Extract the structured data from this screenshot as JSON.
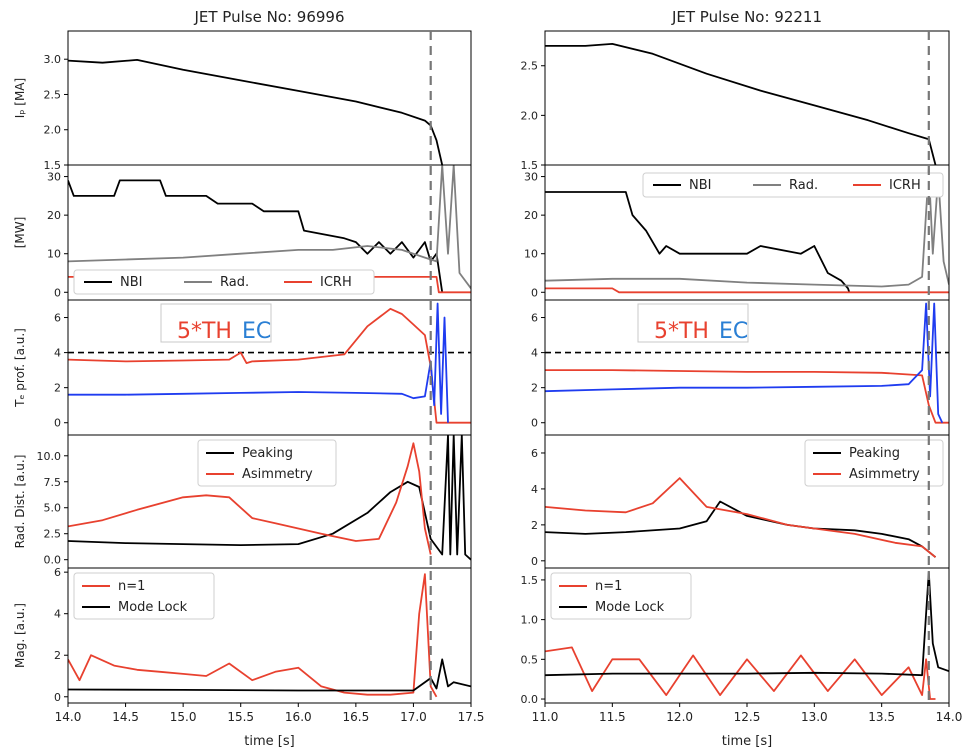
{
  "figure": {
    "xlabel": "time [s]"
  },
  "colors": {
    "black": "#000000",
    "gray": "#808080",
    "red": "#e8412f",
    "blue": "#1f3cf0",
    "thblue": "#2a7fd4"
  },
  "chart_data": [
    {
      "title": "JET Pulse No: 96996",
      "type": "line",
      "xlim": [
        14.0,
        17.5
      ],
      "xticks": [
        "14.0",
        "14.5",
        "15.0",
        "15.5",
        "16.0",
        "16.5",
        "17.0",
        "17.5"
      ],
      "vline_time": 17.15,
      "panels": [
        {
          "id": "ip",
          "ylabel": "Iₚ [MA]",
          "ylim": [
            1.5,
            3.4
          ],
          "yticks": [
            "1.5",
            "2.0",
            "2.5",
            "3.0"
          ],
          "series": [
            {
              "name": "",
              "color": "#000000",
              "x": [
                14.0,
                14.3,
                14.6,
                15.0,
                15.5,
                16.0,
                16.5,
                16.9,
                17.1,
                17.15,
                17.2,
                17.25
              ],
              "y": [
                2.98,
                2.95,
                2.99,
                2.85,
                2.7,
                2.55,
                2.4,
                2.24,
                2.13,
                2.06,
                1.85,
                1.5
              ]
            }
          ]
        },
        {
          "id": "power",
          "ylabel": "[MW]",
          "ylim": [
            -2,
            33
          ],
          "yticks": [
            "0",
            "10",
            "20",
            "30"
          ],
          "legend": {
            "position": "bottom-left"
          },
          "series": [
            {
              "name": "NBI",
              "color": "#000000",
              "x": [
                14.0,
                14.05,
                14.1,
                14.4,
                14.45,
                14.8,
                14.85,
                15.2,
                15.3,
                15.6,
                15.7,
                16.0,
                16.05,
                16.4,
                16.5,
                16.6,
                16.7,
                16.8,
                16.9,
                17.0,
                17.1,
                17.15,
                17.2,
                17.25
              ],
              "y": [
                29,
                25,
                25,
                25,
                29,
                29,
                25,
                25,
                23,
                23,
                21,
                21,
                16,
                14,
                13,
                10,
                13,
                10,
                13,
                9,
                13,
                8,
                10,
                0
              ]
            },
            {
              "name": "Rad.",
              "color": "#808080",
              "x": [
                14.0,
                14.5,
                15.0,
                15.5,
                16.0,
                16.3,
                16.6,
                16.9,
                17.1,
                17.2,
                17.25,
                17.3,
                17.35,
                17.4,
                17.5
              ],
              "y": [
                8,
                8.5,
                9,
                10,
                11,
                11,
                12,
                11,
                9,
                8,
                33,
                10,
                33,
                5,
                1
              ]
            },
            {
              "name": "ICRH",
              "color": "#e8412f",
              "x": [
                14.0,
                17.2,
                17.22,
                17.5
              ],
              "y": [
                4,
                4,
                0,
                0
              ]
            }
          ]
        },
        {
          "id": "te",
          "ylabel": "Tₑ prof. [a.u.]",
          "ylim": [
            -0.7,
            7
          ],
          "yticks": [
            "0",
            "2",
            "4",
            "6"
          ],
          "hline": 4,
          "annotation": {
            "red_text": "5*TH",
            "blue_text": "EC"
          },
          "series": [
            {
              "name": "5*TH",
              "color": "#e8412f",
              "x": [
                14.0,
                14.5,
                15.0,
                15.4,
                15.5,
                15.55,
                15.6,
                16.0,
                16.4,
                16.6,
                16.8,
                16.9,
                17.0,
                17.1,
                17.15,
                17.2,
                17.25,
                17.5
              ],
              "y": [
                3.6,
                3.5,
                3.55,
                3.6,
                4.0,
                3.4,
                3.5,
                3.6,
                3.9,
                5.5,
                6.5,
                6.2,
                5.6,
                5.0,
                3.2,
                0,
                0,
                0
              ]
            },
            {
              "name": "EC",
              "color": "#1f3cf0",
              "x": [
                14.0,
                14.5,
                15.0,
                15.5,
                16.0,
                16.5,
                16.9,
                17.0,
                17.1,
                17.15,
                17.18,
                17.21,
                17.24,
                17.27,
                17.3
              ],
              "y": [
                1.6,
                1.6,
                1.65,
                1.7,
                1.75,
                1.7,
                1.65,
                1.4,
                1.5,
                3.5,
                1.0,
                6.8,
                0.5,
                6.0,
                0
              ]
            }
          ]
        },
        {
          "id": "rad",
          "ylabel": "Rad. Dist. [a.u.]",
          "ylim": [
            -0.8,
            12
          ],
          "yticks": [
            "0.0",
            "2.5",
            "5.0",
            "7.5",
            "10.0"
          ],
          "legend": {
            "position": "top-center"
          },
          "series": [
            {
              "name": "Peaking",
              "color": "#000000",
              "x": [
                14.0,
                14.5,
                15.0,
                15.5,
                16.0,
                16.3,
                16.6,
                16.8,
                16.95,
                17.05,
                17.15,
                17.25,
                17.3,
                17.32,
                17.35,
                17.38,
                17.42,
                17.45,
                17.5
              ],
              "y": [
                1.8,
                1.6,
                1.5,
                1.4,
                1.5,
                2.5,
                4.5,
                6.5,
                7.5,
                7.0,
                2.0,
                0.5,
                12,
                0.5,
                12,
                0.5,
                12,
                0.5,
                0
              ]
            },
            {
              "name": "Asimmetry",
              "color": "#e8412f",
              "x": [
                14.0,
                14.3,
                14.6,
                15.0,
                15.2,
                15.4,
                15.6,
                15.8,
                16.0,
                16.2,
                16.5,
                16.7,
                16.85,
                16.95,
                17.0,
                17.05,
                17.1,
                17.15
              ],
              "y": [
                3.2,
                3.8,
                4.8,
                6.0,
                6.2,
                6.0,
                4.0,
                3.5,
                3.0,
                2.5,
                1.8,
                2.0,
                5.5,
                9.0,
                11.2,
                8.5,
                3.0,
                0.5
              ]
            }
          ]
        },
        {
          "id": "mag",
          "ylabel": "Mag. [a.u.]",
          "ylim": [
            -0.3,
            6.2
          ],
          "yticks": [
            "0",
            "2",
            "4",
            "6"
          ],
          "legend": {
            "position": "top-left"
          },
          "series": [
            {
              "name": "n=1",
              "color": "#e8412f",
              "x": [
                14.0,
                14.1,
                14.2,
                14.4,
                14.6,
                14.8,
                15.0,
                15.2,
                15.4,
                15.6,
                15.8,
                16.0,
                16.2,
                16.4,
                16.6,
                16.8,
                17.0,
                17.05,
                17.1,
                17.15,
                17.2
              ],
              "y": [
                1.8,
                0.8,
                2.0,
                1.5,
                1.3,
                1.2,
                1.1,
                1.0,
                1.6,
                0.8,
                1.2,
                1.4,
                0.5,
                0.2,
                0.1,
                0.1,
                0.2,
                4.0,
                5.9,
                0.5,
                0
              ]
            },
            {
              "name": "Mode Lock",
              "color": "#000000",
              "x": [
                14.0,
                15.0,
                16.0,
                17.0,
                17.15,
                17.2,
                17.25,
                17.3,
                17.35,
                17.5
              ],
              "y": [
                0.35,
                0.33,
                0.3,
                0.3,
                0.9,
                0.4,
                1.8,
                0.5,
                0.7,
                0.5
              ]
            }
          ]
        }
      ]
    },
    {
      "title": "JET Pulse No: 92211",
      "type": "line",
      "xlim": [
        11.0,
        14.0
      ],
      "xticks": [
        "11.0",
        "11.5",
        "12.0",
        "12.5",
        "13.0",
        "13.5",
        "14.0"
      ],
      "vline_time": 13.85,
      "panels": [
        {
          "id": "ip",
          "ylabel": "",
          "ylim": [
            1.5,
            2.85
          ],
          "yticks": [
            "1.5",
            "2.0",
            "2.5"
          ],
          "series": [
            {
              "name": "",
              "color": "#000000",
              "x": [
                11.0,
                11.3,
                11.5,
                11.8,
                12.2,
                12.6,
                13.0,
                13.4,
                13.7,
                13.85,
                13.9
              ],
              "y": [
                2.7,
                2.7,
                2.72,
                2.62,
                2.42,
                2.25,
                2.1,
                1.95,
                1.82,
                1.76,
                1.5
              ]
            }
          ]
        },
        {
          "id": "power",
          "ylabel": "",
          "ylim": [
            -2,
            33
          ],
          "yticks": [
            "0",
            "10",
            "20",
            "30"
          ],
          "legend": {
            "position": "top-right"
          },
          "series": [
            {
              "name": "NBI",
              "color": "#000000",
              "x": [
                11.0,
                11.6,
                11.65,
                11.75,
                11.8,
                11.85,
                11.9,
                12.0,
                12.5,
                12.6,
                12.9,
                13.0,
                13.1,
                13.2,
                13.25,
                13.26
              ],
              "y": [
                26,
                26,
                20,
                16,
                13,
                10,
                12,
                10,
                10,
                12,
                10,
                12,
                5,
                3,
                1,
                0
              ]
            },
            {
              "name": "Rad.",
              "color": "#808080",
              "x": [
                11.0,
                11.5,
                12.0,
                12.5,
                13.0,
                13.5,
                13.7,
                13.8,
                13.85,
                13.88,
                13.92,
                13.96,
                14.0
              ],
              "y": [
                3,
                3.5,
                3.5,
                2.5,
                2,
                1.5,
                2,
                4,
                32,
                10,
                30,
                8,
                2
              ]
            },
            {
              "name": "ICRH",
              "color": "#e8412f",
              "x": [
                11.0,
                11.5,
                11.55,
                14.0
              ],
              "y": [
                1,
                1,
                0,
                0
              ]
            }
          ]
        },
        {
          "id": "te",
          "ylabel": "",
          "ylim": [
            -0.7,
            7
          ],
          "yticks": [
            "0",
            "2",
            "4",
            "6"
          ],
          "hline": 4,
          "annotation": {
            "red_text": "5*TH",
            "blue_text": "EC"
          },
          "series": [
            {
              "name": "5*TH",
              "color": "#e8412f",
              "x": [
                11.0,
                11.5,
                12.0,
                12.5,
                13.0,
                13.5,
                13.8,
                13.85,
                13.9,
                14.0
              ],
              "y": [
                3.0,
                3.0,
                2.95,
                2.9,
                2.9,
                2.85,
                2.7,
                1.0,
                0,
                0
              ]
            },
            {
              "name": "EC",
              "color": "#1f3cf0",
              "x": [
                11.0,
                11.5,
                12.0,
                12.5,
                13.0,
                13.5,
                13.7,
                13.8,
                13.83,
                13.86,
                13.89,
                13.92,
                13.95
              ],
              "y": [
                1.8,
                1.9,
                2.0,
                2.0,
                2.05,
                2.1,
                2.2,
                3.0,
                6.8,
                1.5,
                6.8,
                0.5,
                0
              ]
            }
          ]
        },
        {
          "id": "rad",
          "ylabel": "",
          "ylim": [
            -0.4,
            7
          ],
          "yticks": [
            "0",
            "2",
            "4",
            "6"
          ],
          "legend": {
            "position": "top-right"
          },
          "series": [
            {
              "name": "Peaking",
              "color": "#000000",
              "x": [
                11.0,
                11.3,
                11.6,
                12.0,
                12.2,
                12.3,
                12.5,
                12.8,
                13.0,
                13.3,
                13.5,
                13.7,
                13.8,
                13.85,
                13.9
              ],
              "y": [
                1.6,
                1.5,
                1.6,
                1.8,
                2.2,
                3.3,
                2.5,
                2.0,
                1.8,
                1.7,
                1.5,
                1.2,
                0.8,
                0.5,
                0.2
              ]
            },
            {
              "name": "Asimmetry",
              "color": "#e8412f",
              "x": [
                11.0,
                11.3,
                11.6,
                11.8,
                12.0,
                12.2,
                12.5,
                12.8,
                13.0,
                13.3,
                13.6,
                13.8,
                13.85,
                13.9
              ],
              "y": [
                3.0,
                2.8,
                2.7,
                3.2,
                4.6,
                3.0,
                2.6,
                2.0,
                1.8,
                1.5,
                1.0,
                0.8,
                0.5,
                0.2
              ]
            }
          ]
        },
        {
          "id": "mag",
          "ylabel": "",
          "ylim": [
            -0.05,
            1.65
          ],
          "yticks": [
            "0.0",
            "0.5",
            "1.0",
            "1.5"
          ],
          "legend": {
            "position": "top-left"
          },
          "series": [
            {
              "name": "n=1",
              "color": "#e8412f",
              "x": [
                11.0,
                11.2,
                11.35,
                11.5,
                11.7,
                11.9,
                12.1,
                12.3,
                12.5,
                12.7,
                12.9,
                13.1,
                13.3,
                13.5,
                13.7,
                13.8,
                13.83,
                13.86,
                13.9
              ],
              "y": [
                0.6,
                0.65,
                0.1,
                0.5,
                0.5,
                0.05,
                0.55,
                0.05,
                0.5,
                0.1,
                0.55,
                0.1,
                0.5,
                0.05,
                0.4,
                0.05,
                0.5,
                0,
                0
              ]
            },
            {
              "name": "Mode Lock",
              "color": "#000000",
              "x": [
                11.0,
                11.5,
                12.0,
                12.5,
                13.0,
                13.5,
                13.8,
                13.85,
                13.88,
                13.92,
                14.0
              ],
              "y": [
                0.3,
                0.32,
                0.32,
                0.32,
                0.33,
                0.32,
                0.3,
                1.6,
                0.7,
                0.4,
                0.35
              ]
            }
          ]
        }
      ]
    }
  ]
}
